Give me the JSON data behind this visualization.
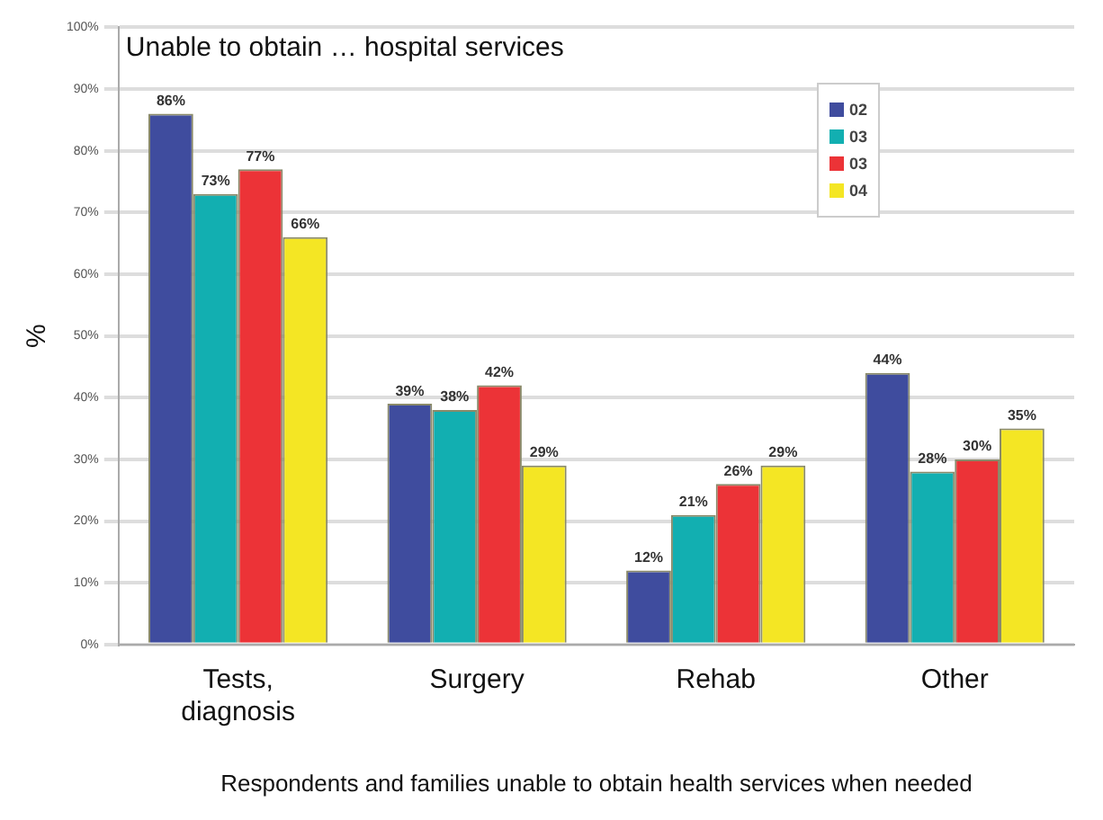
{
  "chart_data": {
    "type": "bar",
    "title": "Unable to obtain … hospital services",
    "xlabel": "Respondents and families unable to obtain health services when needed",
    "ylabel": "%",
    "categories": [
      "Tests, diagnosis",
      "Surgery",
      "Rehab",
      "Other"
    ],
    "series": [
      {
        "name": "02",
        "color": "#3f4c9e",
        "values": [
          86,
          39,
          12,
          44
        ],
        "value_labels": [
          "86%",
          "39%",
          "12%",
          "44%"
        ]
      },
      {
        "name": "03",
        "color": "#12afb1",
        "values": [
          73,
          38,
          21,
          28
        ],
        "value_labels": [
          "73%",
          "38%",
          "21%",
          "28%"
        ]
      },
      {
        "name": "03",
        "color": "#ec3337",
        "values": [
          77,
          42,
          26,
          30
        ],
        "value_labels": [
          "77%",
          "42%",
          "26%",
          "30%"
        ]
      },
      {
        "name": "04",
        "color": "#f4e624",
        "values": [
          66,
          29,
          29,
          35
        ],
        "value_labels": [
          "66%",
          "29%",
          "29%",
          "35%"
        ]
      }
    ],
    "ylim": [
      0,
      100
    ],
    "yticks": [
      {
        "value": 0,
        "label": "0%"
      },
      {
        "value": 10,
        "label": "10%"
      },
      {
        "value": 20,
        "label": "20%"
      },
      {
        "value": 30,
        "label": "30%"
      },
      {
        "value": 40,
        "label": "40%"
      },
      {
        "value": 50,
        "label": "50%"
      },
      {
        "value": 60,
        "label": "60%"
      },
      {
        "value": 70,
        "label": "70%"
      },
      {
        "value": 80,
        "label": "80%"
      },
      {
        "value": 90,
        "label": "90%"
      },
      {
        "value": 100,
        "label": "100%"
      }
    ],
    "grid": "y",
    "legend": "top right"
  }
}
